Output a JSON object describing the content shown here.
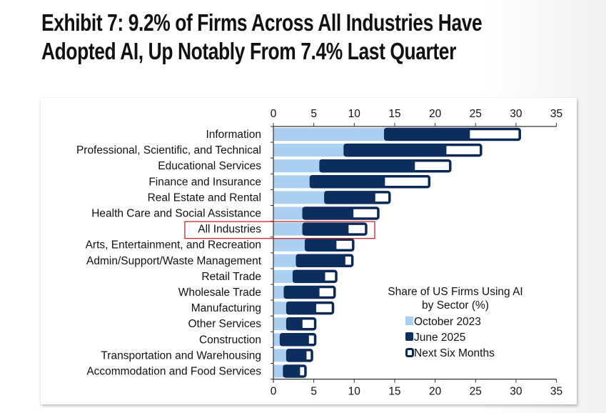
{
  "title": {
    "line1": "Exhibit 7: 9.2% of Firms Across All Industries Have",
    "line2": "Adopted AI, Up Notably From 7.4% Last Quarter"
  },
  "colors": {
    "october_2023": "#a9d0f0",
    "june_2025": "#0b2e5e",
    "next_six_months_fill": "#ffffff",
    "outline": "#0a2857",
    "highlight_box": "#c0282d",
    "axis": "#333333"
  },
  "chart_data": {
    "type": "bar",
    "orientation": "horizontal",
    "title": "",
    "xlabel": "",
    "ylabel": "",
    "xlim": [
      0,
      35
    ],
    "x_ticks": [
      0,
      5,
      10,
      15,
      20,
      25,
      30,
      35
    ],
    "x_axis_position": "top-and-bottom",
    "grid": false,
    "highlighted_category": "All Industries",
    "legend": {
      "title_line1": "Share of US Firms Using AI",
      "title_line2": "by Sector (%)",
      "placement": "bottom-right",
      "entries": [
        "October 2023",
        "June 2025",
        "Next Six Months"
      ]
    },
    "categories": [
      "Information",
      "Professional, Scientific, and Technical",
      "Educational Services",
      "Finance and Insurance",
      "Real Estate and Rental",
      "Health Care and Social Assistance",
      "All Industries",
      "Arts, Entertainment, and Recreation",
      "Admin/Support/Waste Management",
      "Retail Trade",
      "Wholesale Trade",
      "Manufacturing",
      "Other Services",
      "Construction",
      "Transportation and Warehousing",
      "Accommodation and Food Services"
    ],
    "series": [
      {
        "name": "October 2023",
        "values": [
          13.7,
          8.7,
          5.7,
          4.5,
          6.3,
          3.6,
          3.6,
          3.9,
          2.8,
          2.4,
          1.3,
          1.6,
          1.6,
          0.8,
          1.6,
          1.2
        ]
      },
      {
        "name": "June 2025",
        "values": [
          24.3,
          21.4,
          17.5,
          13.8,
          12.6,
          9.9,
          9.3,
          7.8,
          8.9,
          6.4,
          5.7,
          5.3,
          3.6,
          4.4,
          4.1,
          3.3
        ]
      },
      {
        "name": "Next Six Months",
        "values": [
          30.6,
          25.8,
          22.0,
          19.4,
          14.5,
          13.1,
          11.6,
          10.0,
          9.9,
          7.9,
          7.7,
          7.5,
          5.3,
          5.3,
          4.9,
          4.1
        ]
      }
    ]
  }
}
